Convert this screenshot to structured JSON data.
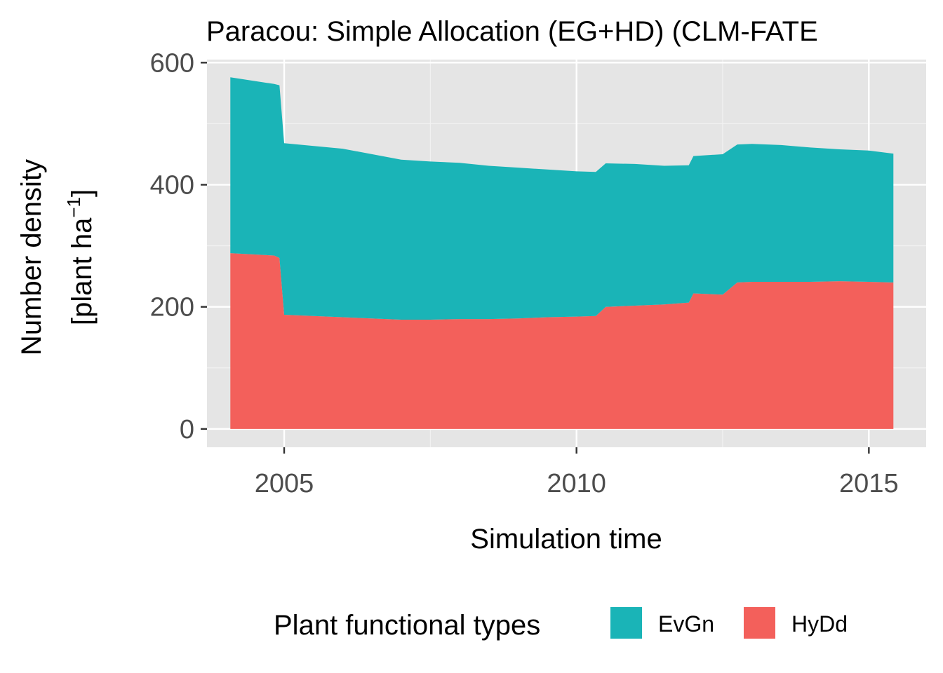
{
  "chart_data": {
    "type": "area",
    "stacked": true,
    "title": "Paracou: Simple Allocation (EG+HD) (CLM-FATE",
    "xlabel": "Simulation time",
    "ylabel_line1": "Number density",
    "ylabel_line2_prefix": "[plant ha",
    "ylabel_sup": "−1",
    "ylabel_line2_suffix": "]",
    "xlim": [
      2003.68,
      2015.98
    ],
    "ylim": [
      -30,
      605
    ],
    "x_ticks": [
      2005,
      2010,
      2015
    ],
    "x_tick_labels": [
      "2005",
      "2010",
      "2015"
    ],
    "y_ticks": [
      0,
      200,
      400,
      600
    ],
    "y_tick_labels": [
      "0",
      "200",
      "400",
      "600"
    ],
    "y_minor_ticks": [
      100,
      300,
      500
    ],
    "x_minor_ticks": [
      2007.5,
      2012.5
    ],
    "grid": true,
    "legend_title": "Plant functional types",
    "legend_position": "bottom",
    "x": [
      2004.08,
      2004.83,
      2004.92,
      2005.0,
      2006.0,
      2007.0,
      2007.5,
      2008.0,
      2008.5,
      2009.0,
      2009.5,
      2010.0,
      2010.33,
      2010.5,
      2011.0,
      2011.5,
      2011.92,
      2012.0,
      2012.5,
      2012.75,
      2013.0,
      2013.5,
      2014.0,
      2014.5,
      2015.0,
      2015.42
    ],
    "series": [
      {
        "name": "HyDd",
        "color": "#F3605B",
        "values": [
          288,
          284,
          280,
          187,
          183,
          179,
          179,
          180,
          180,
          181,
          183,
          184,
          185,
          200,
          202,
          204,
          207,
          222,
          220,
          240,
          241,
          241,
          241,
          242,
          241,
          240
        ]
      },
      {
        "name": "EvGn",
        "color": "#1AB4B7",
        "values": [
          288,
          281,
          283,
          281,
          276,
          262,
          259,
          256,
          251,
          247,
          242,
          238,
          236,
          235,
          232,
          227,
          225,
          225,
          230,
          226,
          226,
          224,
          220,
          216,
          215,
          211
        ]
      }
    ]
  }
}
